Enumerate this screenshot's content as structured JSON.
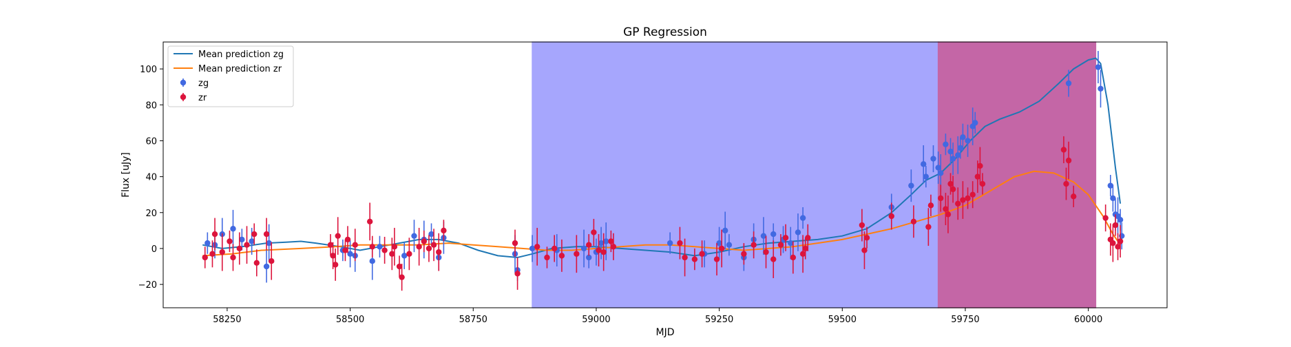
{
  "chart_data": {
    "type": "scatter",
    "title": "GP Regression",
    "xlabel": "MJD",
    "ylabel": "Flux [uJy]",
    "xlim": [
      58120,
      60160
    ],
    "ylim": [
      -33,
      115
    ],
    "xticks": [
      58250,
      58500,
      58750,
      59000,
      59250,
      59500,
      59750,
      60000
    ],
    "yticks": [
      -20,
      0,
      20,
      40,
      60,
      80,
      100
    ],
    "grid": false,
    "legend_position": "top-left",
    "shaded_regions": [
      {
        "x_start": 58870,
        "x_end": 59695,
        "color": "#a6a6fd"
      },
      {
        "x_start": 59695,
        "x_end": 60015,
        "color": "#c466a6"
      }
    ],
    "series": [
      {
        "name": "Mean prediction zg",
        "kind": "line",
        "color": "#1f77b4",
        "points": [
          [
            58200,
            2
          ],
          [
            58240,
            0
          ],
          [
            58280,
            1
          ],
          [
            58330,
            3
          ],
          [
            58370,
            3.5
          ],
          [
            58400,
            4
          ],
          [
            58430,
            3
          ],
          [
            58480,
            1
          ],
          [
            58520,
            -1
          ],
          [
            58560,
            1
          ],
          [
            58600,
            3
          ],
          [
            58640,
            5
          ],
          [
            58680,
            5
          ],
          [
            58720,
            3
          ],
          [
            58760,
            -1
          ],
          [
            58800,
            -4
          ],
          [
            58840,
            -5
          ],
          [
            58870,
            -3
          ],
          [
            58910,
            0
          ],
          [
            58960,
            1
          ],
          [
            59000,
            1
          ],
          [
            59050,
            0
          ],
          [
            59100,
            -1
          ],
          [
            59150,
            -2
          ],
          [
            59200,
            -4
          ],
          [
            59250,
            -2
          ],
          [
            59300,
            1
          ],
          [
            59350,
            3
          ],
          [
            59400,
            4
          ],
          [
            59450,
            5
          ],
          [
            59500,
            7
          ],
          [
            59550,
            11
          ],
          [
            59600,
            20
          ],
          [
            59640,
            30
          ],
          [
            59670,
            38
          ],
          [
            59700,
            42
          ],
          [
            59730,
            50
          ],
          [
            59760,
            60
          ],
          [
            59790,
            68
          ],
          [
            59820,
            72
          ],
          [
            59860,
            76
          ],
          [
            59900,
            82
          ],
          [
            59940,
            92
          ],
          [
            59970,
            100
          ],
          [
            60000,
            105
          ],
          [
            60015,
            106
          ],
          [
            60025,
            103
          ],
          [
            60040,
            80
          ],
          [
            60055,
            45
          ],
          [
            60065,
            25
          ]
        ]
      },
      {
        "name": "Mean prediction zr",
        "kind": "line",
        "color": "#ff7f0e",
        "points": [
          [
            58200,
            -4
          ],
          [
            58260,
            -3
          ],
          [
            58320,
            -1
          ],
          [
            58400,
            0
          ],
          [
            58470,
            1
          ],
          [
            58520,
            2
          ],
          [
            58580,
            2
          ],
          [
            58640,
            2
          ],
          [
            58700,
            3
          ],
          [
            58750,
            2
          ],
          [
            58800,
            1
          ],
          [
            58850,
            0
          ],
          [
            58900,
            -1
          ],
          [
            58950,
            -1
          ],
          [
            59000,
            0
          ],
          [
            59050,
            1
          ],
          [
            59100,
            2
          ],
          [
            59150,
            2
          ],
          [
            59200,
            1
          ],
          [
            59250,
            0
          ],
          [
            59300,
            -1
          ],
          [
            59350,
            0
          ],
          [
            59400,
            1
          ],
          [
            59450,
            3
          ],
          [
            59500,
            5
          ],
          [
            59550,
            8
          ],
          [
            59600,
            11
          ],
          [
            59650,
            15
          ],
          [
            59700,
            19
          ],
          [
            59750,
            24
          ],
          [
            59800,
            32
          ],
          [
            59850,
            40
          ],
          [
            59890,
            43
          ],
          [
            59930,
            42
          ],
          [
            59970,
            37
          ],
          [
            60000,
            30
          ],
          [
            60030,
            18
          ],
          [
            60050,
            8
          ],
          [
            60065,
            2
          ]
        ]
      },
      {
        "name": "zg",
        "kind": "points",
        "color": "#4169e1",
        "points": [
          [
            58210,
            3
          ],
          [
            58225,
            2
          ],
          [
            58240,
            8
          ],
          [
            58262,
            11
          ],
          [
            58280,
            5
          ],
          [
            58300,
            4
          ],
          [
            58330,
            -10
          ],
          [
            58335,
            3
          ],
          [
            58485,
            -1
          ],
          [
            58500,
            -3
          ],
          [
            58510,
            -4
          ],
          [
            58545,
            -7
          ],
          [
            58560,
            1
          ],
          [
            58610,
            -4
          ],
          [
            58630,
            7
          ],
          [
            58650,
            5
          ],
          [
            58665,
            8
          ],
          [
            58680,
            -5
          ],
          [
            58690,
            6
          ],
          [
            58835,
            -3
          ],
          [
            58840,
            -12
          ],
          [
            58870,
            0
          ],
          [
            58920,
            -1
          ],
          [
            58975,
            0
          ],
          [
            58985,
            -5
          ],
          [
            59000,
            -2
          ],
          [
            59010,
            3
          ],
          [
            59020,
            4
          ],
          [
            59150,
            3
          ],
          [
            59220,
            -3
          ],
          [
            59250,
            3
          ],
          [
            59262,
            10
          ],
          [
            59270,
            2
          ],
          [
            59300,
            -5
          ],
          [
            59320,
            5
          ],
          [
            59340,
            7
          ],
          [
            59360,
            8
          ],
          [
            59380,
            5
          ],
          [
            59395,
            3
          ],
          [
            59410,
            9
          ],
          [
            59420,
            17
          ],
          [
            59600,
            23
          ],
          [
            59640,
            35
          ],
          [
            59665,
            47
          ],
          [
            59670,
            40
          ],
          [
            59685,
            50
          ],
          [
            59695,
            45
          ],
          [
            59700,
            42
          ],
          [
            59710,
            58
          ],
          [
            59720,
            54
          ],
          [
            59725,
            50
          ],
          [
            59735,
            52
          ],
          [
            59740,
            56
          ],
          [
            59745,
            62
          ],
          [
            59755,
            60
          ],
          [
            59765,
            68
          ],
          [
            59770,
            70
          ],
          [
            59960,
            92
          ],
          [
            60020,
            101
          ],
          [
            60025,
            89
          ],
          [
            60045,
            35
          ],
          [
            60050,
            28
          ],
          [
            60055,
            19
          ],
          [
            60060,
            18
          ],
          [
            60065,
            16
          ],
          [
            60068,
            7
          ]
        ]
      },
      {
        "name": "zr",
        "kind": "points",
        "color": "#dc143c",
        "points": [
          [
            58205,
            -5
          ],
          [
            58220,
            -3
          ],
          [
            58225,
            8
          ],
          [
            58240,
            -2
          ],
          [
            58255,
            4
          ],
          [
            58262,
            -5
          ],
          [
            58275,
            0
          ],
          [
            58290,
            2
          ],
          [
            58305,
            8
          ],
          [
            58310,
            -8
          ],
          [
            58330,
            8
          ],
          [
            58340,
            -7
          ],
          [
            58460,
            2
          ],
          [
            58465,
            -4
          ],
          [
            58470,
            -9
          ],
          [
            58475,
            7
          ],
          [
            58490,
            -1
          ],
          [
            58495,
            5
          ],
          [
            58510,
            2
          ],
          [
            58540,
            15
          ],
          [
            58545,
            1
          ],
          [
            58570,
            -1
          ],
          [
            58585,
            -3
          ],
          [
            58590,
            1
          ],
          [
            58600,
            -10
          ],
          [
            58605,
            -16
          ],
          [
            58620,
            -3
          ],
          [
            58640,
            1
          ],
          [
            58650,
            4
          ],
          [
            58660,
            0
          ],
          [
            58670,
            2
          ],
          [
            58680,
            -2
          ],
          [
            58690,
            10
          ],
          [
            58835,
            3
          ],
          [
            58840,
            -14
          ],
          [
            58880,
            1
          ],
          [
            58900,
            -5
          ],
          [
            58915,
            0
          ],
          [
            58930,
            -4
          ],
          [
            58960,
            -3
          ],
          [
            58985,
            2
          ],
          [
            58995,
            9
          ],
          [
            59005,
            -1
          ],
          [
            59015,
            -2
          ],
          [
            59030,
            4
          ],
          [
            59035,
            1
          ],
          [
            59170,
            3
          ],
          [
            59180,
            -5
          ],
          [
            59200,
            -6
          ],
          [
            59215,
            -3
          ],
          [
            59245,
            -6
          ],
          [
            59255,
            0
          ],
          [
            59300,
            -3
          ],
          [
            59320,
            2
          ],
          [
            59345,
            -2
          ],
          [
            59360,
            -6
          ],
          [
            59375,
            2
          ],
          [
            59385,
            6
          ],
          [
            59400,
            -5
          ],
          [
            59420,
            -3
          ],
          [
            59425,
            0
          ],
          [
            59430,
            6
          ],
          [
            59540,
            13
          ],
          [
            59545,
            -1
          ],
          [
            59550,
            6
          ],
          [
            59600,
            18
          ],
          [
            59645,
            15
          ],
          [
            59675,
            12
          ],
          [
            59680,
            24
          ],
          [
            59700,
            28
          ],
          [
            59710,
            22
          ],
          [
            59715,
            19
          ],
          [
            59720,
            36
          ],
          [
            59725,
            33
          ],
          [
            59735,
            25
          ],
          [
            59745,
            27
          ],
          [
            59755,
            28
          ],
          [
            59765,
            30
          ],
          [
            59775,
            40
          ],
          [
            59780,
            46
          ],
          [
            59785,
            36
          ],
          [
            59950,
            55
          ],
          [
            59955,
            36
          ],
          [
            59960,
            49
          ],
          [
            59970,
            29
          ],
          [
            60035,
            17
          ],
          [
            60045,
            5
          ],
          [
            60050,
            3
          ],
          [
            60055,
            13
          ],
          [
            60060,
            1
          ],
          [
            60065,
            4
          ]
        ]
      }
    ]
  }
}
